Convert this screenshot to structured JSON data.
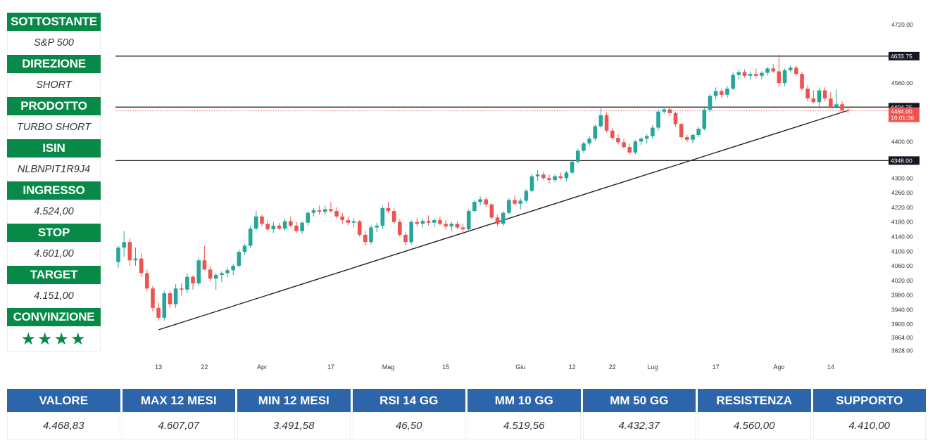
{
  "info_panel": {
    "items": [
      {
        "label": "SOTTOSTANTE",
        "value": "S&P 500"
      },
      {
        "label": "DIREZIONE",
        "value": "SHORT"
      },
      {
        "label": "PRODOTTO",
        "value": "TURBO SHORT"
      },
      {
        "label": "ISIN",
        "value": "NLBNPIT1R9J4"
      },
      {
        "label": "INGRESSO",
        "value": "4.524,00"
      },
      {
        "label": "STOP",
        "value": "4.601,00"
      },
      {
        "label": "TARGET",
        "value": "4.151,00"
      }
    ],
    "conviction_label": "CONVINZIONE",
    "conviction_stars": "★★★★",
    "accent_color": "#078a47"
  },
  "stats_table": {
    "header_color": "#2d65aa",
    "columns": [
      {
        "label": "VALORE",
        "value": "4.468,83"
      },
      {
        "label": "MAX 12 MESI",
        "value": "4.607,07"
      },
      {
        "label": "MIN 12 MESI",
        "value": "3.491,58"
      },
      {
        "label": "RSI 14 GG",
        "value": "46,50"
      },
      {
        "label": "MM 10 GG",
        "value": "4.519,56"
      },
      {
        "label": "MM 50 GG",
        "value": "4.432,37"
      },
      {
        "label": "RESISTENZA",
        "value": "4.560,00"
      },
      {
        "label": "SUPPORTO",
        "value": "4.410,00"
      }
    ]
  },
  "chart_data": {
    "type": "candlestick",
    "up_color": "#26a69a",
    "down_color": "#ef5350",
    "ylim": [
      3810,
      4745
    ],
    "y_ticks": [
      4720,
      4560,
      4400,
      4300,
      4260,
      4220,
      4180,
      4140,
      4100,
      4060,
      4020,
      3980,
      3940,
      3900,
      3864,
      3828
    ],
    "y_tick_labels": [
      "4720.00",
      "4560.00",
      "4400.00",
      "4300.00",
      "4260.00",
      "4220.00",
      "4180.00",
      "4140.00",
      "4100.00",
      "4060.00",
      "4020.00",
      "3980.00",
      "3940.00",
      "3900.00",
      "3864.00",
      "3828.00"
    ],
    "x_tick_labels": [
      {
        "label": "13",
        "index": 7
      },
      {
        "label": "22",
        "index": 15
      },
      {
        "label": "Apr",
        "index": 25
      },
      {
        "label": "17",
        "index": 37
      },
      {
        "label": "Mag",
        "index": 47
      },
      {
        "label": "15",
        "index": 57
      },
      {
        "label": "Giu",
        "index": 70
      },
      {
        "label": "12",
        "index": 79
      },
      {
        "label": "22",
        "index": 86
      },
      {
        "label": "Lug",
        "index": 93
      },
      {
        "label": "17",
        "index": 104
      },
      {
        "label": "Ago",
        "index": 115
      },
      {
        "label": "14",
        "index": 124
      }
    ],
    "horizontal_levels": [
      {
        "value": 4633.75,
        "label": "4633.75"
      },
      {
        "value": 4494.25,
        "label": "4494.25"
      },
      {
        "value": 4348.0,
        "label": "4348.00"
      }
    ],
    "last_price": {
      "value": 4484.0,
      "label": "4484.00",
      "countdown": "16:01:36"
    },
    "trendline": {
      "from": {
        "index": 7,
        "value": 3885
      },
      "to": {
        "index": 127,
        "value": 4485
      }
    },
    "candles": [
      [
        4070,
        4115,
        4055,
        4110
      ],
      [
        4110,
        4155,
        4085,
        4125
      ],
      [
        4125,
        4135,
        4060,
        4075
      ],
      [
        4075,
        4110,
        4060,
        4080
      ],
      [
        4080,
        4095,
        4030,
        4040
      ],
      [
        4040,
        4050,
        3990,
        3998
      ],
      [
        3998,
        4005,
        3935,
        3945
      ],
      [
        3945,
        3960,
        3910,
        3918
      ],
      [
        3918,
        3992,
        3910,
        3985
      ],
      [
        3985,
        3992,
        3945,
        3955
      ],
      [
        3955,
        4010,
        3945,
        3998
      ],
      [
        3998,
        4012,
        3978,
        3995
      ],
      [
        3995,
        4040,
        3985,
        4030
      ],
      [
        4030,
        4035,
        3995,
        4012
      ],
      [
        4012,
        4082,
        4005,
        4075
      ],
      [
        4075,
        4115,
        4048,
        4050
      ],
      [
        4050,
        4060,
        4018,
        4025
      ],
      [
        4025,
        4040,
        3995,
        4035
      ],
      [
        4035,
        4045,
        4015,
        4040
      ],
      [
        4040,
        4055,
        4030,
        4048
      ],
      [
        4048,
        4065,
        4035,
        4060
      ],
      [
        4060,
        4105,
        4055,
        4098
      ],
      [
        4098,
        4120,
        4090,
        4115
      ],
      [
        4115,
        4170,
        4108,
        4162
      ],
      [
        4162,
        4210,
        4155,
        4195
      ],
      [
        4195,
        4200,
        4168,
        4175
      ],
      [
        4175,
        4185,
        4155,
        4160
      ],
      [
        4160,
        4180,
        4150,
        4170
      ],
      [
        4170,
        4178,
        4158,
        4162
      ],
      [
        4162,
        4190,
        4155,
        4182
      ],
      [
        4182,
        4195,
        4165,
        4170
      ],
      [
        4170,
        4180,
        4150,
        4155
      ],
      [
        4155,
        4182,
        4148,
        4178
      ],
      [
        4178,
        4210,
        4170,
        4205
      ],
      [
        4205,
        4218,
        4195,
        4212
      ],
      [
        4212,
        4225,
        4200,
        4208
      ],
      [
        4208,
        4225,
        4198,
        4215
      ],
      [
        4215,
        4235,
        4205,
        4210
      ],
      [
        4210,
        4220,
        4190,
        4195
      ],
      [
        4195,
        4205,
        4175,
        4185
      ],
      [
        4185,
        4195,
        4170,
        4178
      ],
      [
        4178,
        4190,
        4165,
        4182
      ],
      [
        4182,
        4185,
        4140,
        4145
      ],
      [
        4145,
        4155,
        4115,
        4125
      ],
      [
        4125,
        4172,
        4118,
        4165
      ],
      [
        4165,
        4178,
        4152,
        4170
      ],
      [
        4170,
        4225,
        4162,
        4218
      ],
      [
        4218,
        4235,
        4205,
        4210
      ],
      [
        4210,
        4218,
        4175,
        4180
      ],
      [
        4180,
        4188,
        4140,
        4145
      ],
      [
        4145,
        4152,
        4115,
        4125
      ],
      [
        4125,
        4185,
        4118,
        4180
      ],
      [
        4180,
        4192,
        4168,
        4175
      ],
      [
        4175,
        4188,
        4165,
        4183
      ],
      [
        4183,
        4198,
        4170,
        4178
      ],
      [
        4178,
        4190,
        4165,
        4185
      ],
      [
        4185,
        4195,
        4170,
        4175
      ],
      [
        4175,
        4185,
        4160,
        4168
      ],
      [
        4168,
        4180,
        4155,
        4175
      ],
      [
        4175,
        4182,
        4160,
        4165
      ],
      [
        4165,
        4175,
        4150,
        4160
      ],
      [
        4160,
        4215,
        4155,
        4210
      ],
      [
        4210,
        4240,
        4205,
        4235
      ],
      [
        4235,
        4250,
        4225,
        4242
      ],
      [
        4242,
        4248,
        4220,
        4228
      ],
      [
        4228,
        4232,
        4188,
        4192
      ],
      [
        4192,
        4200,
        4168,
        4175
      ],
      [
        4175,
        4210,
        4170,
        4205
      ],
      [
        4205,
        4245,
        4200,
        4240
      ],
      [
        4240,
        4252,
        4225,
        4230
      ],
      [
        4230,
        4245,
        4215,
        4238
      ],
      [
        4238,
        4270,
        4232,
        4265
      ],
      [
        4265,
        4312,
        4262,
        4305
      ],
      [
        4305,
        4322,
        4292,
        4310
      ],
      [
        4310,
        4318,
        4295,
        4300
      ],
      [
        4300,
        4310,
        4285,
        4295
      ],
      [
        4295,
        4310,
        4288,
        4305
      ],
      [
        4305,
        4315,
        4295,
        4300
      ],
      [
        4300,
        4320,
        4292,
        4315
      ],
      [
        4315,
        4350,
        4310,
        4345
      ],
      [
        4345,
        4380,
        4340,
        4375
      ],
      [
        4375,
        4400,
        4368,
        4395
      ],
      [
        4395,
        4415,
        4388,
        4408
      ],
      [
        4408,
        4448,
        4402,
        4442
      ],
      [
        4442,
        4492,
        4436,
        4472
      ],
      [
        4472,
        4480,
        4425,
        4430
      ],
      [
        4430,
        4438,
        4405,
        4410
      ],
      [
        4410,
        4420,
        4392,
        4398
      ],
      [
        4398,
        4408,
        4380,
        4385
      ],
      [
        4385,
        4395,
        4365,
        4370
      ],
      [
        4370,
        4405,
        4365,
        4400
      ],
      [
        4400,
        4412,
        4390,
        4408
      ],
      [
        4408,
        4420,
        4395,
        4415
      ],
      [
        4415,
        4445,
        4408,
        4438
      ],
      [
        4438,
        4488,
        4430,
        4482
      ],
      [
        4482,
        4495,
        4475,
        4488
      ],
      [
        4488,
        4494,
        4470,
        4478
      ],
      [
        4478,
        4482,
        4440,
        4448
      ],
      [
        4448,
        4452,
        4408,
        4412
      ],
      [
        4412,
        4418,
        4398,
        4405
      ],
      [
        4405,
        4422,
        4395,
        4418
      ],
      [
        4418,
        4440,
        4412,
        4435
      ],
      [
        4435,
        4492,
        4430,
        4487
      ],
      [
        4487,
        4530,
        4480,
        4525
      ],
      [
        4525,
        4548,
        4515,
        4538
      ],
      [
        4538,
        4545,
        4520,
        4528
      ],
      [
        4528,
        4552,
        4520,
        4545
      ],
      [
        4545,
        4590,
        4540,
        4582
      ],
      [
        4582,
        4598,
        4572,
        4590
      ],
      [
        4590,
        4598,
        4575,
        4580
      ],
      [
        4580,
        4592,
        4568,
        4585
      ],
      [
        4585,
        4600,
        4572,
        4580
      ],
      [
        4580,
        4592,
        4570,
        4588
      ],
      [
        4588,
        4605,
        4580,
        4600
      ],
      [
        4600,
        4612,
        4588,
        4592
      ],
      [
        4592,
        4638,
        4550,
        4560
      ],
      [
        4560,
        4600,
        4552,
        4595
      ],
      [
        4595,
        4608,
        4588,
        4602
      ],
      [
        4602,
        4608,
        4580,
        4585
      ],
      [
        4585,
        4590,
        4540,
        4545
      ],
      [
        4545,
        4555,
        4510,
        4518
      ],
      [
        4518,
        4540,
        4505,
        4508
      ],
      [
        4508,
        4548,
        4495,
        4540
      ],
      [
        4540,
        4548,
        4510,
        4518
      ],
      [
        4518,
        4535,
        4492,
        4495
      ],
      [
        4495,
        4542,
        4490,
        4502
      ],
      [
        4502,
        4510,
        4480,
        4486
      ],
      [
        4486,
        4495,
        4478,
        4484
      ]
    ]
  }
}
